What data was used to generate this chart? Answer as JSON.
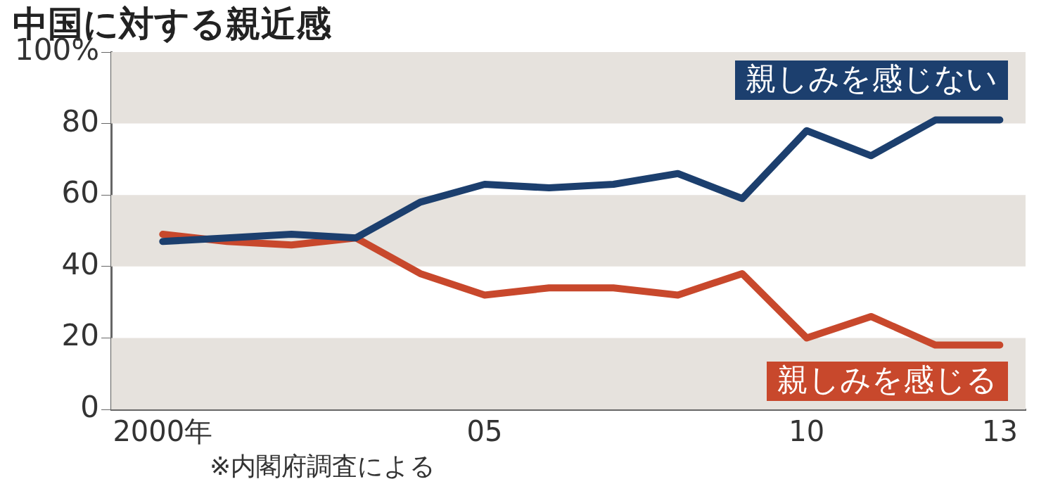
{
  "chart_data": {
    "type": "line",
    "title": "中国に対する親近感",
    "annotations": [
      "※内閣府調査による"
    ],
    "x": [
      2000,
      2001,
      2002,
      2003,
      2004,
      2005,
      2006,
      2007,
      2008,
      2009,
      2010,
      2011,
      2012,
      2013
    ],
    "series": [
      {
        "name": "親しみを感じない",
        "color": "#1c3f6e",
        "values": [
          47,
          48,
          49,
          48,
          58,
          63,
          62,
          63,
          66,
          59,
          78,
          71,
          81,
          81
        ]
      },
      {
        "name": "親しみを感じる",
        "color": "#c8482c",
        "values": [
          49,
          47,
          46,
          48,
          38,
          32,
          34,
          34,
          32,
          38,
          20,
          26,
          18,
          18
        ]
      }
    ],
    "xlim": [
      1999.2,
      2013.4
    ],
    "xticks": [
      {
        "value": 2000,
        "label": "2000年"
      },
      {
        "value": 2005,
        "label": "05"
      },
      {
        "value": 2010,
        "label": "10"
      },
      {
        "value": 2013,
        "label": "13"
      }
    ],
    "ylim": [
      0,
      100
    ],
    "yticks": [
      0,
      20,
      40,
      60,
      80,
      {
        "value": 100,
        "label": "100%"
      }
    ],
    "bands": [
      {
        "axis": "y",
        "from": 80,
        "to": 100,
        "color": "#e6e2dd"
      },
      {
        "axis": "y",
        "from": 40,
        "to": 60,
        "color": "#e6e2dd"
      },
      {
        "axis": "y",
        "from": 0,
        "to": 20,
        "color": "#e6e2dd"
      }
    ],
    "grid": false,
    "legend": false,
    "marker": "none",
    "line_style": "solid"
  }
}
